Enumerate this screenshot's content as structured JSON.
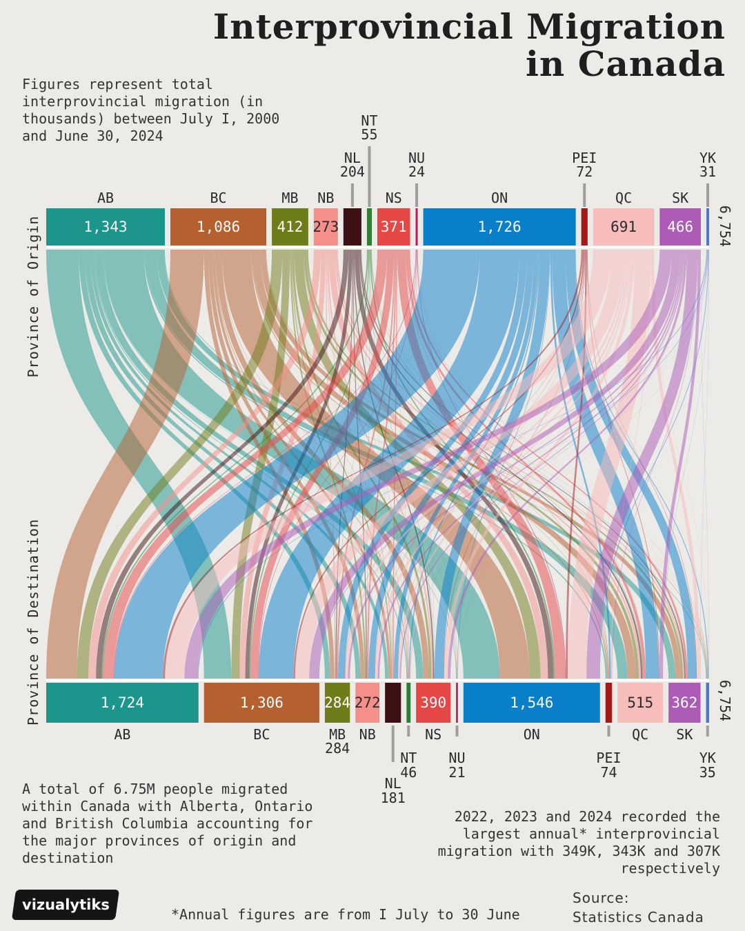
{
  "header": {
    "title_line1": "Interprovincial Migration",
    "title_line2": "in Canada",
    "subtitle": "Figures represent total interprovincial migration (in thousands) between July I, 2000 and June 30, 2024"
  },
  "notes": {
    "left": "A total of 6.75M people migrated within Canada with Alberta, Ontario and British Columbia accounting for the major provinces of origin and destination",
    "right": "2022, 2023 and 2024 recorded the largest annual* interprovincial migration with 349K, 343K and 307K respectively",
    "footnote": "*Annual figures are from I July to 30 June",
    "source_label": "Source:",
    "source_value": "Statistics Canada",
    "logo": "vizualytiks"
  },
  "chart_data": {
    "type": "sankey",
    "title": "Interprovincial Migration in Canada",
    "units": "thousands",
    "origin_label": "Province of Origin",
    "destination_label": "Province of Destination",
    "total_origin": "6,754",
    "total_destination": "6,754",
    "provinces": [
      {
        "code": "AB",
        "color": "#1c958c",
        "origin": 1343,
        "origin_label": "1,343",
        "destination": 1724,
        "destination_label": "1,724"
      },
      {
        "code": "BC",
        "color": "#b5602f",
        "origin": 1086,
        "origin_label": "1,086",
        "destination": 1306,
        "destination_label": "1,306"
      },
      {
        "code": "MB",
        "color": "#6f7c1a",
        "origin": 412,
        "origin_label": "412",
        "destination": 284,
        "destination_label": "284"
      },
      {
        "code": "NB",
        "color": "#f58f8a",
        "origin": 273,
        "origin_label": "273",
        "destination": 272,
        "destination_label": "272"
      },
      {
        "code": "NL",
        "color": "#3d1113",
        "origin": 204,
        "origin_label": "204",
        "destination": 181,
        "destination_label": "181"
      },
      {
        "code": "NT",
        "color": "#2e7d32",
        "origin": 55,
        "origin_label": "55",
        "destination": 46,
        "destination_label": "46"
      },
      {
        "code": "NS",
        "color": "#e54747",
        "origin": 371,
        "origin_label": "371",
        "destination": 390,
        "destination_label": "390"
      },
      {
        "code": "NU",
        "color": "#c2185b",
        "origin": 24,
        "origin_label": "24",
        "destination": 21,
        "destination_label": "21"
      },
      {
        "code": "ON",
        "color": "#0a7fc9",
        "origin": 1726,
        "origin_label": "1,726",
        "destination": 1546,
        "destination_label": "1,546"
      },
      {
        "code": "PEI",
        "color": "#a31a1a",
        "origin": 72,
        "origin_label": "72",
        "destination": 74,
        "destination_label": "74"
      },
      {
        "code": "QC",
        "color": "#f7bcbc",
        "origin": 691,
        "origin_label": "691",
        "destination": 515,
        "destination_label": "515"
      },
      {
        "code": "SK",
        "color": "#ac5cb5",
        "origin": 466,
        "origin_label": "466",
        "destination": 362,
        "destination_label": "362"
      },
      {
        "code": "YK",
        "color": "#4a76cf",
        "origin": 31,
        "origin_label": "31",
        "destination": 35,
        "destination_label": "35"
      }
    ]
  }
}
